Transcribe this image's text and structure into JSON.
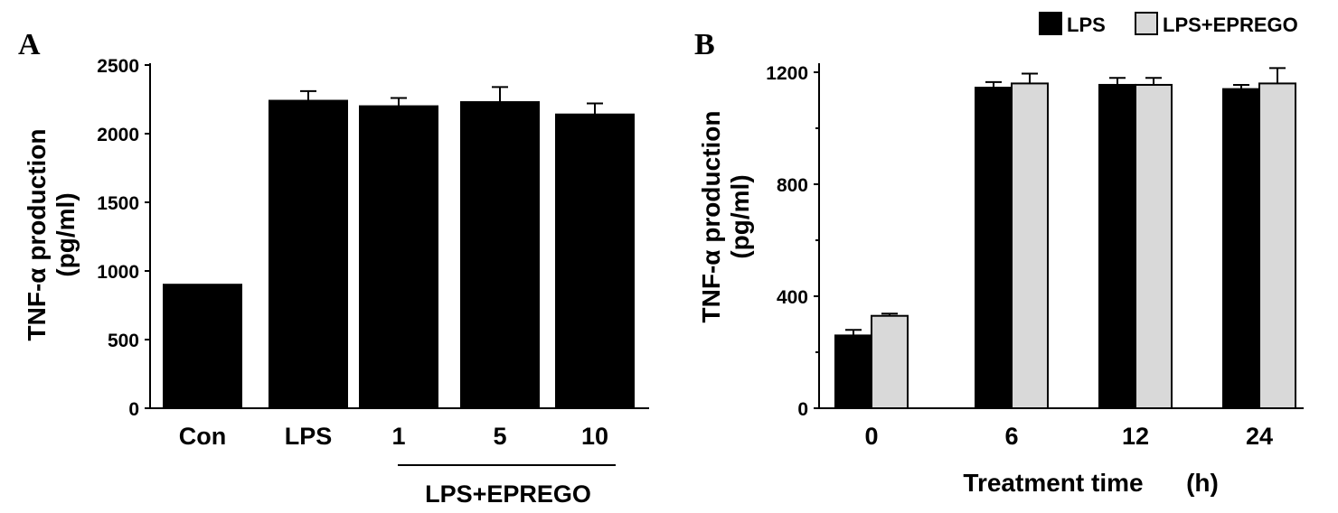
{
  "chart_data": [
    {
      "type": "bar",
      "panel_label": "A",
      "ylabel_line1": "TNF-α production",
      "ylabel_line2": "(pg/ml)",
      "xlabel": "",
      "group_label": "LPS+EPREGO",
      "ylim": [
        0,
        2500
      ],
      "yticks": [
        0,
        500,
        1000,
        1500,
        2000,
        2500
      ],
      "categories": [
        "Con",
        "LPS",
        "1",
        "5",
        "10"
      ],
      "series": [
        {
          "color": "#000000",
          "values": [
            900,
            2240,
            2200,
            2230,
            2140
          ],
          "errors": [
            0,
            70,
            60,
            110,
            80
          ]
        }
      ]
    },
    {
      "type": "bar",
      "panel_label": "B",
      "ylabel_line1": "TNF-α production",
      "ylabel_line2": "(pg/ml)",
      "xlabel": "Treatment time",
      "xlabel_unit": "(h)",
      "ylim": [
        0,
        1200
      ],
      "yticks": [
        0,
        400,
        800,
        1200
      ],
      "categories": [
        "0",
        "6",
        "12",
        "24"
      ],
      "legend_position": "top-right",
      "series": [
        {
          "name": "LPS",
          "color": "#000000",
          "values": [
            260,
            1145,
            1155,
            1140
          ],
          "errors": [
            20,
            20,
            25,
            15
          ]
        },
        {
          "name": "LPS+EPREGO",
          "color": "#d9d9d9",
          "values": [
            330,
            1160,
            1155,
            1160
          ],
          "errors": [
            8,
            35,
            25,
            55
          ]
        }
      ]
    }
  ]
}
